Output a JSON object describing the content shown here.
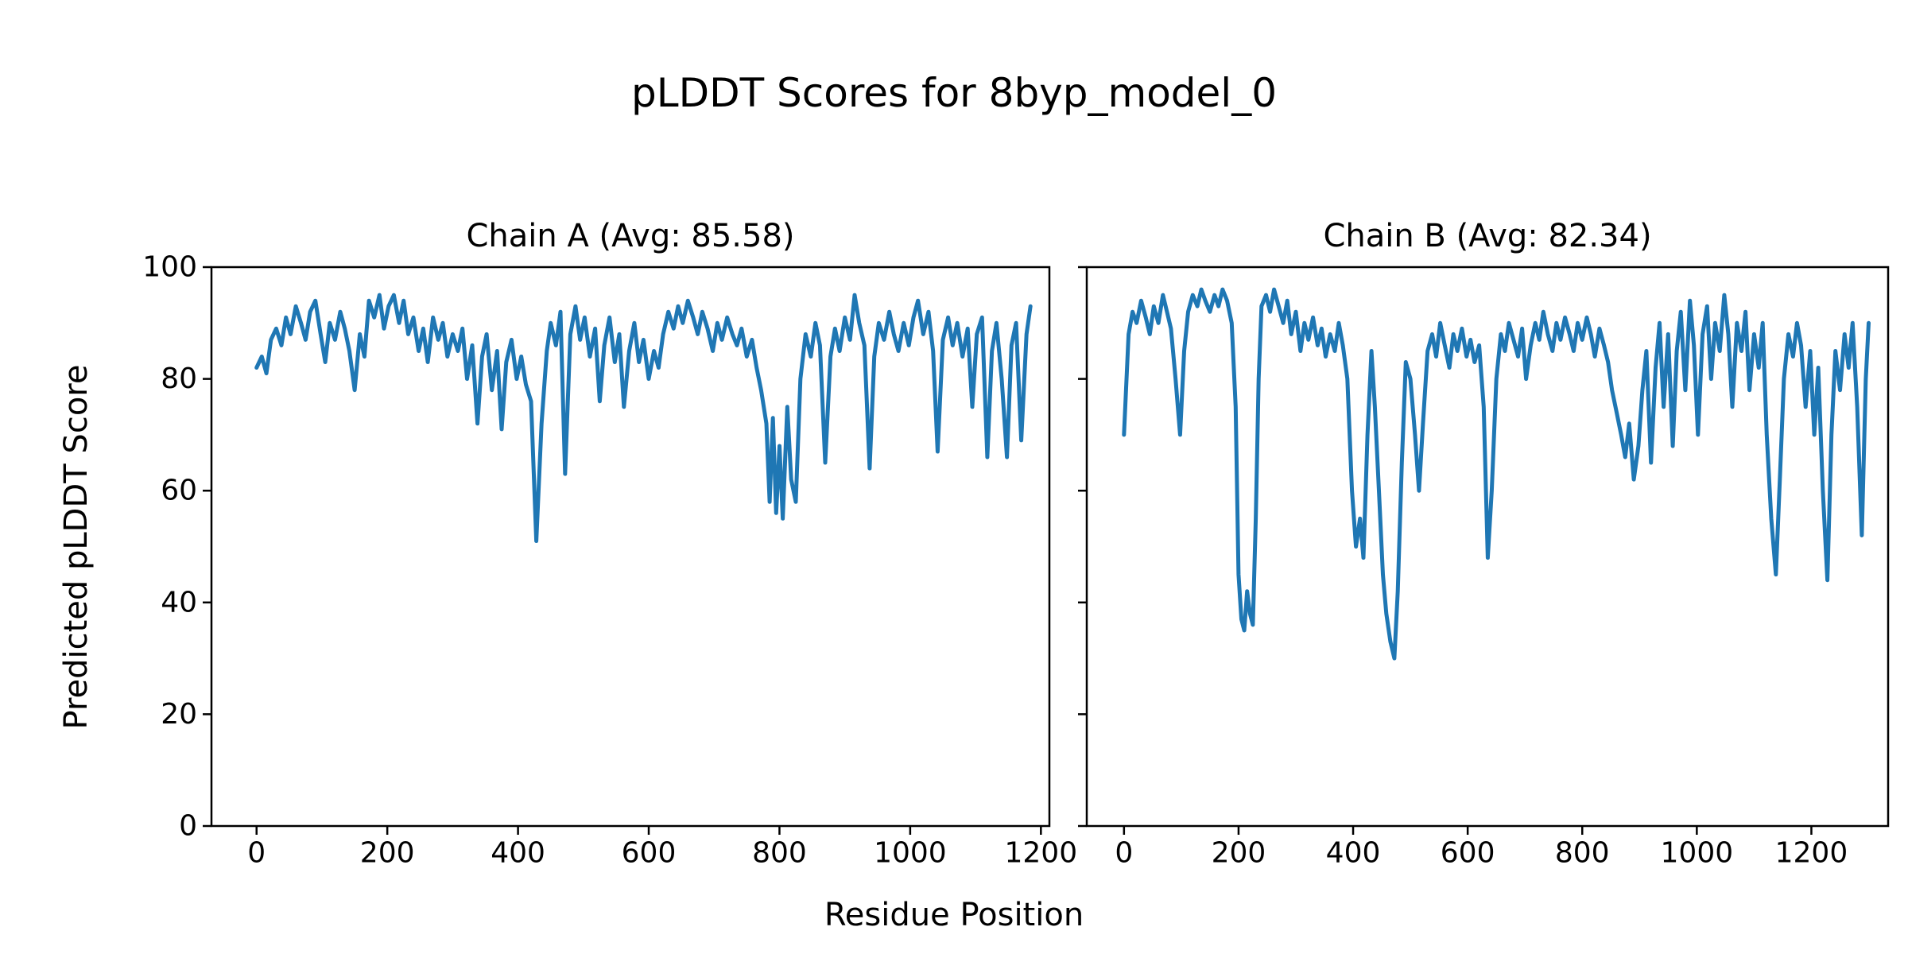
{
  "figure": {
    "title": "pLDDT Scores for 8byp_model_0",
    "xlabel": "Residue Position",
    "ylabel": "Predicted pLDDT Score",
    "line_color": "#1f77b4",
    "background": "#ffffff",
    "text_color": "#000000"
  },
  "chart_data": [
    {
      "type": "line",
      "name": "chain-a",
      "title": "Chain A (Avg: 85.58)",
      "average": 85.58,
      "xticks": [
        0,
        200,
        400,
        600,
        800,
        1000,
        1200
      ],
      "yticks": [
        0,
        20,
        40,
        60,
        80,
        100
      ],
      "ylim": [
        0,
        100
      ],
      "xlim": [
        -69,
        1213
      ],
      "grid": false,
      "points": [
        [
          0,
          82
        ],
        [
          8,
          84
        ],
        [
          15,
          81
        ],
        [
          22,
          87
        ],
        [
          30,
          89
        ],
        [
          38,
          86
        ],
        [
          45,
          91
        ],
        [
          52,
          88
        ],
        [
          60,
          93
        ],
        [
          68,
          90
        ],
        [
          75,
          87
        ],
        [
          82,
          92
        ],
        [
          90,
          94
        ],
        [
          98,
          88
        ],
        [
          105,
          83
        ],
        [
          112,
          90
        ],
        [
          120,
          87
        ],
        [
          128,
          92
        ],
        [
          135,
          89
        ],
        [
          142,
          85
        ],
        [
          150,
          78
        ],
        [
          158,
          88
        ],
        [
          165,
          84
        ],
        [
          172,
          94
        ],
        [
          180,
          91
        ],
        [
          188,
          95
        ],
        [
          195,
          89
        ],
        [
          202,
          93
        ],
        [
          210,
          95
        ],
        [
          218,
          90
        ],
        [
          225,
          94
        ],
        [
          232,
          88
        ],
        [
          240,
          91
        ],
        [
          248,
          85
        ],
        [
          255,
          89
        ],
        [
          262,
          83
        ],
        [
          270,
          91
        ],
        [
          278,
          87
        ],
        [
          285,
          90
        ],
        [
          292,
          84
        ],
        [
          300,
          88
        ],
        [
          308,
          85
        ],
        [
          315,
          89
        ],
        [
          322,
          80
        ],
        [
          330,
          86
        ],
        [
          338,
          72
        ],
        [
          345,
          84
        ],
        [
          352,
          88
        ],
        [
          360,
          78
        ],
        [
          368,
          85
        ],
        [
          375,
          71
        ],
        [
          382,
          83
        ],
        [
          390,
          87
        ],
        [
          398,
          80
        ],
        [
          405,
          84
        ],
        [
          412,
          79
        ],
        [
          420,
          76
        ],
        [
          428,
          51
        ],
        [
          436,
          72
        ],
        [
          444,
          85
        ],
        [
          450,
          90
        ],
        [
          458,
          86
        ],
        [
          465,
          92
        ],
        [
          472,
          63
        ],
        [
          480,
          88
        ],
        [
          488,
          93
        ],
        [
          495,
          87
        ],
        [
          502,
          91
        ],
        [
          510,
          84
        ],
        [
          518,
          89
        ],
        [
          525,
          76
        ],
        [
          532,
          86
        ],
        [
          540,
          91
        ],
        [
          548,
          83
        ],
        [
          555,
          88
        ],
        [
          562,
          75
        ],
        [
          570,
          85
        ],
        [
          578,
          90
        ],
        [
          585,
          83
        ],
        [
          592,
          87
        ],
        [
          600,
          80
        ],
        [
          608,
          85
        ],
        [
          615,
          82
        ],
        [
          622,
          88
        ],
        [
          630,
          92
        ],
        [
          638,
          89
        ],
        [
          645,
          93
        ],
        [
          652,
          90
        ],
        [
          660,
          94
        ],
        [
          668,
          91
        ],
        [
          675,
          88
        ],
        [
          682,
          92
        ],
        [
          690,
          89
        ],
        [
          698,
          85
        ],
        [
          705,
          90
        ],
        [
          712,
          87
        ],
        [
          720,
          91
        ],
        [
          728,
          88
        ],
        [
          735,
          86
        ],
        [
          742,
          89
        ],
        [
          750,
          84
        ],
        [
          758,
          87
        ],
        [
          765,
          82
        ],
        [
          772,
          78
        ],
        [
          780,
          72
        ],
        [
          785,
          58
        ],
        [
          790,
          73
        ],
        [
          795,
          56
        ],
        [
          800,
          68
        ],
        [
          805,
          55
        ],
        [
          812,
          75
        ],
        [
          818,
          62
        ],
        [
          825,
          58
        ],
        [
          832,
          80
        ],
        [
          840,
          88
        ],
        [
          848,
          84
        ],
        [
          855,
          90
        ],
        [
          862,
          86
        ],
        [
          870,
          65
        ],
        [
          878,
          84
        ],
        [
          885,
          89
        ],
        [
          892,
          85
        ],
        [
          900,
          91
        ],
        [
          908,
          87
        ],
        [
          915,
          95
        ],
        [
          922,
          90
        ],
        [
          930,
          86
        ],
        [
          938,
          64
        ],
        [
          945,
          84
        ],
        [
          952,
          90
        ],
        [
          960,
          87
        ],
        [
          968,
          92
        ],
        [
          975,
          88
        ],
        [
          982,
          85
        ],
        [
          990,
          90
        ],
        [
          998,
          86
        ],
        [
          1005,
          91
        ],
        [
          1012,
          94
        ],
        [
          1020,
          88
        ],
        [
          1028,
          92
        ],
        [
          1035,
          85
        ],
        [
          1042,
          67
        ],
        [
          1050,
          87
        ],
        [
          1058,
          91
        ],
        [
          1065,
          86
        ],
        [
          1072,
          90
        ],
        [
          1080,
          84
        ],
        [
          1088,
          89
        ],
        [
          1095,
          75
        ],
        [
          1102,
          88
        ],
        [
          1110,
          91
        ],
        [
          1118,
          66
        ],
        [
          1125,
          85
        ],
        [
          1132,
          90
        ],
        [
          1140,
          80
        ],
        [
          1148,
          66
        ],
        [
          1155,
          86
        ],
        [
          1162,
          90
        ],
        [
          1170,
          69
        ],
        [
          1178,
          88
        ],
        [
          1184,
          93
        ]
      ]
    },
    {
      "type": "line",
      "name": "chain-b",
      "title": "Chain B (Avg: 82.34)",
      "average": 82.34,
      "xticks": [
        0,
        200,
        400,
        600,
        800,
        1000,
        1200
      ],
      "yticks": [
        0,
        20,
        40,
        60,
        80,
        100
      ],
      "ylim": [
        0,
        100
      ],
      "xlim": [
        -65,
        1334
      ],
      "grid": false,
      "points": [
        [
          0,
          70
        ],
        [
          8,
          88
        ],
        [
          15,
          92
        ],
        [
          22,
          90
        ],
        [
          30,
          94
        ],
        [
          38,
          91
        ],
        [
          45,
          88
        ],
        [
          52,
          93
        ],
        [
          60,
          90
        ],
        [
          68,
          95
        ],
        [
          75,
          92
        ],
        [
          82,
          89
        ],
        [
          90,
          80
        ],
        [
          98,
          70
        ],
        [
          105,
          85
        ],
        [
          112,
          92
        ],
        [
          120,
          95
        ],
        [
          128,
          93
        ],
        [
          135,
          96
        ],
        [
          142,
          94
        ],
        [
          150,
          92
        ],
        [
          158,
          95
        ],
        [
          165,
          93
        ],
        [
          172,
          96
        ],
        [
          180,
          94
        ],
        [
          188,
          90
        ],
        [
          195,
          75
        ],
        [
          200,
          45
        ],
        [
          205,
          37
        ],
        [
          210,
          35
        ],
        [
          215,
          42
        ],
        [
          220,
          38
        ],
        [
          225,
          36
        ],
        [
          230,
          55
        ],
        [
          235,
          80
        ],
        [
          240,
          93
        ],
        [
          248,
          95
        ],
        [
          255,
          92
        ],
        [
          262,
          96
        ],
        [
          270,
          93
        ],
        [
          278,
          90
        ],
        [
          285,
          94
        ],
        [
          292,
          88
        ],
        [
          300,
          92
        ],
        [
          308,
          85
        ],
        [
          315,
          90
        ],
        [
          322,
          87
        ],
        [
          330,
          91
        ],
        [
          338,
          86
        ],
        [
          345,
          89
        ],
        [
          352,
          84
        ],
        [
          360,
          88
        ],
        [
          368,
          85
        ],
        [
          375,
          90
        ],
        [
          382,
          86
        ],
        [
          390,
          80
        ],
        [
          398,
          60
        ],
        [
          405,
          50
        ],
        [
          412,
          55
        ],
        [
          418,
          48
        ],
        [
          425,
          70
        ],
        [
          432,
          85
        ],
        [
          438,
          75
        ],
        [
          445,
          60
        ],
        [
          452,
          45
        ],
        [
          458,
          38
        ],
        [
          465,
          33
        ],
        [
          472,
          30
        ],
        [
          478,
          42
        ],
        [
          485,
          65
        ],
        [
          492,
          83
        ],
        [
          500,
          80
        ],
        [
          508,
          70
        ],
        [
          515,
          60
        ],
        [
          522,
          72
        ],
        [
          530,
          85
        ],
        [
          538,
          88
        ],
        [
          545,
          84
        ],
        [
          552,
          90
        ],
        [
          560,
          86
        ],
        [
          568,
          82
        ],
        [
          575,
          88
        ],
        [
          582,
          85
        ],
        [
          590,
          89
        ],
        [
          598,
          84
        ],
        [
          605,
          87
        ],
        [
          612,
          83
        ],
        [
          620,
          86
        ],
        [
          628,
          75
        ],
        [
          635,
          48
        ],
        [
          642,
          60
        ],
        [
          650,
          80
        ],
        [
          658,
          88
        ],
        [
          665,
          85
        ],
        [
          672,
          90
        ],
        [
          680,
          87
        ],
        [
          688,
          84
        ],
        [
          695,
          89
        ],
        [
          702,
          80
        ],
        [
          710,
          86
        ],
        [
          718,
          90
        ],
        [
          725,
          87
        ],
        [
          732,
          92
        ],
        [
          740,
          88
        ],
        [
          748,
          85
        ],
        [
          755,
          90
        ],
        [
          762,
          87
        ],
        [
          770,
          91
        ],
        [
          778,
          88
        ],
        [
          785,
          85
        ],
        [
          792,
          90
        ],
        [
          800,
          87
        ],
        [
          808,
          91
        ],
        [
          815,
          88
        ],
        [
          822,
          84
        ],
        [
          830,
          89
        ],
        [
          838,
          86
        ],
        [
          845,
          83
        ],
        [
          852,
          78
        ],
        [
          860,
          74
        ],
        [
          868,
          70
        ],
        [
          875,
          66
        ],
        [
          882,
          72
        ],
        [
          890,
          62
        ],
        [
          898,
          68
        ],
        [
          905,
          78
        ],
        [
          912,
          85
        ],
        [
          920,
          65
        ],
        [
          928,
          82
        ],
        [
          935,
          90
        ],
        [
          942,
          75
        ],
        [
          950,
          88
        ],
        [
          958,
          68
        ],
        [
          965,
          85
        ],
        [
          972,
          92
        ],
        [
          980,
          78
        ],
        [
          988,
          94
        ],
        [
          995,
          86
        ],
        [
          1002,
          70
        ],
        [
          1010,
          88
        ],
        [
          1018,
          93
        ],
        [
          1025,
          80
        ],
        [
          1032,
          90
        ],
        [
          1040,
          85
        ],
        [
          1048,
          95
        ],
        [
          1055,
          88
        ],
        [
          1062,
          75
        ],
        [
          1070,
          90
        ],
        [
          1078,
          85
        ],
        [
          1085,
          92
        ],
        [
          1092,
          78
        ],
        [
          1100,
          88
        ],
        [
          1108,
          82
        ],
        [
          1115,
          90
        ],
        [
          1122,
          70
        ],
        [
          1130,
          55
        ],
        [
          1138,
          45
        ],
        [
          1145,
          62
        ],
        [
          1152,
          80
        ],
        [
          1160,
          88
        ],
        [
          1168,
          84
        ],
        [
          1175,
          90
        ],
        [
          1182,
          86
        ],
        [
          1190,
          75
        ],
        [
          1198,
          85
        ],
        [
          1205,
          70
        ],
        [
          1212,
          82
        ],
        [
          1220,
          60
        ],
        [
          1228,
          44
        ],
        [
          1235,
          70
        ],
        [
          1242,
          85
        ],
        [
          1250,
          78
        ],
        [
          1258,
          88
        ],
        [
          1265,
          82
        ],
        [
          1272,
          90
        ],
        [
          1280,
          75
        ],
        [
          1288,
          52
        ],
        [
          1295,
          80
        ],
        [
          1300,
          90
        ]
      ]
    }
  ]
}
